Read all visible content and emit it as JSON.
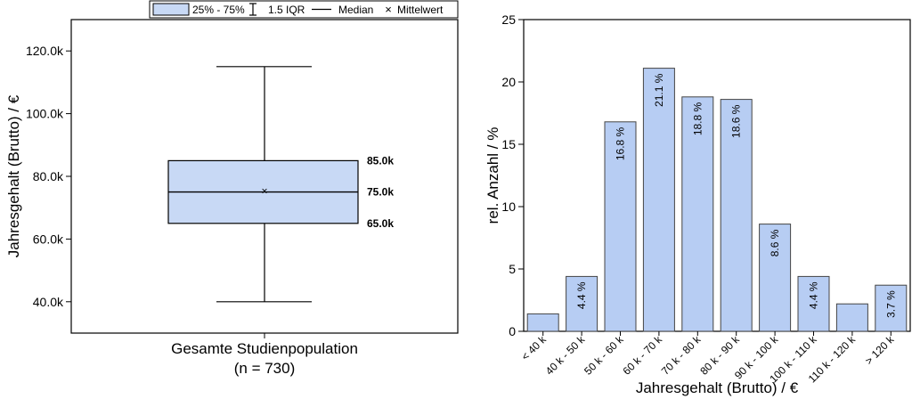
{
  "chart_data": [
    {
      "type": "box",
      "legend": {
        "box_label": "25% - 75%",
        "whisker_label": "1.5 IQR",
        "median_label": "Median",
        "mean_label": "Mittelwert",
        "mean_marker": "×"
      },
      "ylabel": "Jahresgehalt (Brutto) / €",
      "ylim": [
        30000,
        130000
      ],
      "yticks": [
        {
          "value": 40000,
          "label": "40.0k"
        },
        {
          "value": 60000,
          "label": "60.0k"
        },
        {
          "value": 80000,
          "label": "80.0k"
        },
        {
          "value": 100000,
          "label": "100.0k"
        },
        {
          "value": 120000,
          "label": "120.0k"
        }
      ],
      "category_line1": "Gesamte Studienpopulation",
      "category_line2": "(n = 730)",
      "stats": {
        "whisker_low": 40000,
        "q1": 65000,
        "median": 75000,
        "mean": 75300,
        "q3": 85000,
        "whisker_high": 115000
      },
      "annotations": {
        "q3": "85.0k",
        "median": "75.0k",
        "q1": "65.0k"
      },
      "colors": {
        "box_fill": "#c8d9f5",
        "stroke": "#000000"
      }
    },
    {
      "type": "bar",
      "xlabel": "Jahresgehalt (Brutto) / €",
      "ylabel": "rel. Anzahl / %",
      "ylim": [
        0,
        25
      ],
      "yticks": [
        0,
        5,
        10,
        15,
        20,
        25
      ],
      "categories": [
        "< 40 k",
        "40 k - 50 k",
        "50 k - 60 k",
        "60 k - 70 k",
        "70 k - 80 k",
        "80 k - 90 k",
        "90 k - 100 k",
        "100 k - 110 k",
        "110 k - 120 k",
        "> 120 k"
      ],
      "values": [
        1.4,
        4.4,
        16.8,
        21.1,
        18.8,
        18.6,
        8.6,
        4.4,
        2.2,
        3.7
      ],
      "bar_labels": [
        "",
        "4.4 %",
        "16.8 %",
        "21.1 %",
        "18.8 %",
        "18.6 %",
        "8.6 %",
        "4.4 %",
        "",
        "3.7 %"
      ],
      "colors": {
        "bar_fill": "#b7cdf3",
        "bar_stroke": "#444444"
      }
    }
  ]
}
